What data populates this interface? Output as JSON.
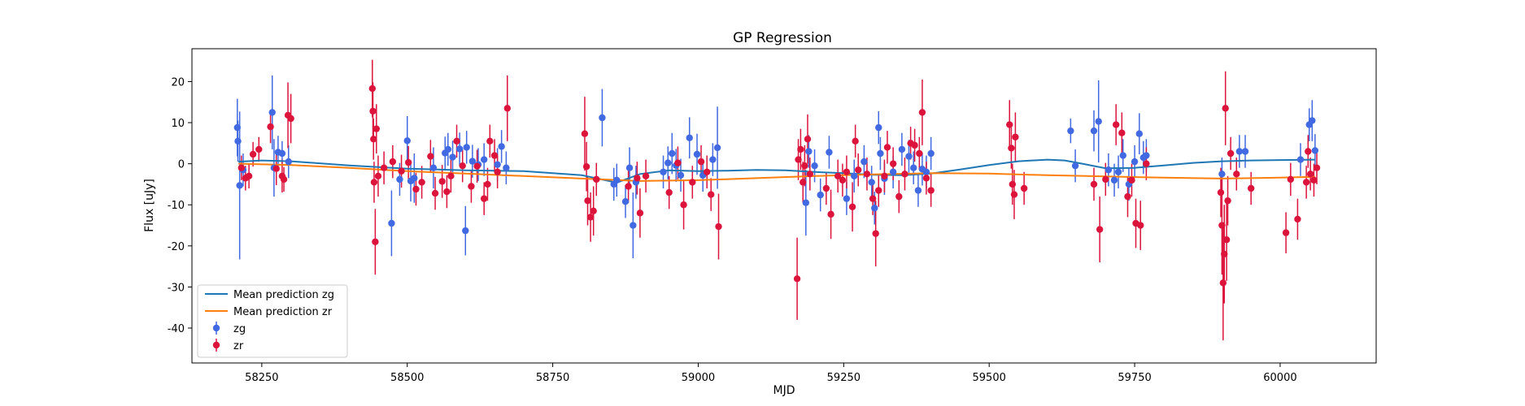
{
  "chart_data": {
    "type": "scatter",
    "title": "GP Regression",
    "xlabel": "MJD",
    "ylabel": "Flux [uJy]",
    "xlim": [
      58130,
      60165
    ],
    "ylim": [
      -48.5,
      28
    ],
    "xticks": [
      58250,
      58500,
      58750,
      59000,
      59250,
      59500,
      59750,
      60000
    ],
    "yticks": [
      20,
      10,
      0,
      -10,
      -20,
      -30,
      -40
    ],
    "grid": false,
    "legend_position": "lower-left",
    "legend": [
      {
        "label": "Mean prediction zg",
        "kind": "line",
        "color": "#1f77b4"
      },
      {
        "label": "Mean prediction zr",
        "kind": "line",
        "color": "#ff7f0e"
      },
      {
        "label": "zg",
        "kind": "errorbar",
        "color": "#4169e1"
      },
      {
        "label": "zr",
        "kind": "errorbar",
        "color": "#dc143c"
      }
    ],
    "mean_predictions": [
      {
        "name": "Mean prediction zg",
        "color": "#1f77b4",
        "x": [
          58210,
          58250,
          58300,
          58400,
          58500,
          58600,
          58700,
          58800,
          58860,
          58900,
          58950,
          59000,
          59050,
          59100,
          59150,
          59200,
          59250,
          59300,
          59350,
          59400,
          59450,
          59500,
          59550,
          59600,
          59630,
          59660,
          59700,
          59750,
          59800,
          59850,
          59900,
          59950,
          60000,
          60060
        ],
        "y": [
          0.5,
          0.8,
          0.6,
          -0.4,
          -1.2,
          -1.6,
          -1.8,
          -2.8,
          -4.6,
          -2.5,
          -1.6,
          -1.8,
          -1.7,
          -1.5,
          -1.6,
          -2.0,
          -2.3,
          -2.7,
          -2.8,
          -2.4,
          -1.4,
          -0.3,
          0.6,
          1.0,
          0.8,
          0.0,
          -1.1,
          -1.0,
          -0.4,
          0.2,
          0.6,
          0.8,
          0.9,
          1.0
        ]
      },
      {
        "name": "Mean prediction zr",
        "color": "#ff7f0e",
        "x": [
          58210,
          58300,
          58400,
          58500,
          58600,
          58700,
          58800,
          58900,
          59000,
          59100,
          59200,
          59300,
          59400,
          59500,
          59600,
          59700,
          59800,
          59900,
          60000,
          60060
        ],
        "y": [
          0.0,
          -0.3,
          -1.0,
          -1.8,
          -2.4,
          -3.0,
          -3.6,
          -4.2,
          -4.0,
          -3.5,
          -3.0,
          -2.6,
          -2.3,
          -2.4,
          -2.8,
          -3.1,
          -3.4,
          -3.6,
          -3.4,
          -3.2
        ]
      }
    ],
    "series": [
      {
        "name": "zg",
        "color": "#4169e1",
        "points": [
          [
            58208,
            8.8,
            7
          ],
          [
            58209,
            5.5,
            5
          ],
          [
            58212,
            -5.3,
            18
          ],
          [
            58218,
            -1.5,
            4
          ],
          [
            58268,
            12.5,
            9
          ],
          [
            58271,
            -1.0,
            7
          ],
          [
            58278,
            2.8,
            4
          ],
          [
            58285,
            2.5,
            3
          ],
          [
            58296,
            0.5,
            4
          ],
          [
            58473,
            -14.5,
            8
          ],
          [
            58487,
            -3.8,
            4
          ],
          [
            58500,
            5.6,
            6
          ],
          [
            58506,
            -4.2,
            5
          ],
          [
            58512,
            -3.5,
            6
          ],
          [
            58545,
            -1.0,
            5
          ],
          [
            58565,
            2.6,
            4
          ],
          [
            58570,
            3.5,
            4
          ],
          [
            58578,
            1.6,
            4
          ],
          [
            58590,
            3.6,
            4
          ],
          [
            58600,
            -16.3,
            6
          ],
          [
            58602,
            4.0,
            4
          ],
          [
            58612,
            0.6,
            4
          ],
          [
            58622,
            -0.2,
            4
          ],
          [
            58632,
            1.0,
            4
          ],
          [
            58655,
            -0.2,
            4
          ],
          [
            58662,
            4.2,
            4
          ],
          [
            58670,
            -1.0,
            4
          ],
          [
            58835,
            11.2,
            7
          ],
          [
            58855,
            -5.0,
            4
          ],
          [
            58860,
            -4.0,
            4
          ],
          [
            58875,
            -9.2,
            4
          ],
          [
            58882,
            -1.0,
            5
          ],
          [
            58888,
            -15.0,
            8
          ],
          [
            58893,
            -4.5,
            4
          ],
          [
            58940,
            -2.0,
            4
          ],
          [
            58948,
            0.2,
            4
          ],
          [
            58955,
            2.5,
            5
          ],
          [
            58962,
            -0.4,
            4
          ],
          [
            58970,
            -2.8,
            4
          ],
          [
            58985,
            6.3,
            5
          ],
          [
            58998,
            2.3,
            5
          ],
          [
            59008,
            -2.8,
            4
          ],
          [
            59025,
            1.0,
            4
          ],
          [
            59033,
            3.9,
            10
          ],
          [
            59185,
            -9.5,
            8
          ],
          [
            59190,
            3.0,
            4
          ],
          [
            59200,
            -0.5,
            4
          ],
          [
            59210,
            -7.6,
            4
          ],
          [
            59225,
            2.8,
            4
          ],
          [
            59255,
            -8.5,
            4
          ],
          [
            59268,
            -3.0,
            4
          ],
          [
            59285,
            0.5,
            4
          ],
          [
            59298,
            -4.5,
            4
          ],
          [
            59303,
            -10.8,
            4
          ],
          [
            59310,
            8.8,
            4
          ],
          [
            59313,
            2.5,
            4
          ],
          [
            59320,
            -3.6,
            4
          ],
          [
            59335,
            -2.0,
            4
          ],
          [
            59350,
            3.5,
            4
          ],
          [
            59362,
            1.8,
            4
          ],
          [
            59370,
            -1.0,
            4
          ],
          [
            59378,
            -6.5,
            4
          ],
          [
            59385,
            -1.3,
            4
          ],
          [
            59392,
            -2.0,
            4
          ],
          [
            59400,
            2.5,
            4
          ],
          [
            59640,
            8.0,
            3
          ],
          [
            59648,
            -0.5,
            4
          ],
          [
            59680,
            8.0,
            5
          ],
          [
            59688,
            10.3,
            10
          ],
          [
            59705,
            -1.5,
            4
          ],
          [
            59715,
            -4.0,
            4
          ],
          [
            59722,
            -2.0,
            4
          ],
          [
            59730,
            2.0,
            4
          ],
          [
            59740,
            -5.0,
            4
          ],
          [
            59750,
            0.5,
            4
          ],
          [
            59758,
            7.3,
            5
          ],
          [
            59765,
            1.5,
            4
          ],
          [
            59770,
            2.0,
            4
          ],
          [
            59900,
            -2.5,
            4
          ],
          [
            59930,
            3.0,
            4
          ],
          [
            59940,
            3.0,
            4
          ],
          [
            60035,
            1.0,
            4
          ],
          [
            60050,
            9.5,
            4
          ],
          [
            60055,
            10.5,
            5
          ],
          [
            60060,
            3.2,
            4
          ]
        ]
      },
      {
        "name": "zr",
        "color": "#dc143c",
        "points": [
          [
            58215,
            -1.0,
            3
          ],
          [
            58222,
            -3.5,
            3
          ],
          [
            58228,
            -3.0,
            3
          ],
          [
            58235,
            2.3,
            3
          ],
          [
            58245,
            3.5,
            3
          ],
          [
            58265,
            9.0,
            4
          ],
          [
            58275,
            -1.2,
            4
          ],
          [
            58285,
            -3.0,
            4
          ],
          [
            58288,
            -3.8,
            3
          ],
          [
            58295,
            11.8,
            8
          ],
          [
            58300,
            11.0,
            6
          ],
          [
            58440,
            18.3,
            7
          ],
          [
            58441,
            12.8,
            7
          ],
          [
            58442,
            6.0,
            5
          ],
          [
            58443,
            -4.5,
            5
          ],
          [
            58445,
            -19.0,
            8
          ],
          [
            58447,
            8.5,
            6
          ],
          [
            58450,
            -3.0,
            5
          ],
          [
            58460,
            -1.0,
            4
          ],
          [
            58475,
            0.5,
            4
          ],
          [
            58490,
            -1.8,
            4
          ],
          [
            58502,
            0.3,
            4
          ],
          [
            58515,
            -6.2,
            4
          ],
          [
            58525,
            -4.5,
            4
          ],
          [
            58540,
            1.8,
            4
          ],
          [
            58548,
            -7.2,
            4
          ],
          [
            58560,
            -4.3,
            4
          ],
          [
            58568,
            -6.8,
            4
          ],
          [
            58575,
            -3.0,
            4
          ],
          [
            58585,
            5.5,
            4
          ],
          [
            58595,
            -0.5,
            4
          ],
          [
            58610,
            -5.5,
            4
          ],
          [
            58620,
            -0.6,
            4
          ],
          [
            58632,
            -8.5,
            4
          ],
          [
            58638,
            -5.0,
            4
          ],
          [
            58642,
            5.5,
            4
          ],
          [
            58650,
            2.0,
            4
          ],
          [
            58655,
            -2.0,
            4
          ],
          [
            58672,
            13.5,
            8
          ],
          [
            58805,
            7.3,
            9
          ],
          [
            58808,
            -0.7,
            6
          ],
          [
            58810,
            -9.0,
            6
          ],
          [
            58815,
            -13.0,
            6
          ],
          [
            58820,
            -11.5,
            6
          ],
          [
            58825,
            -3.8,
            4
          ],
          [
            58880,
            -5.5,
            4
          ],
          [
            58895,
            -3.5,
            4
          ],
          [
            58900,
            -12.0,
            6
          ],
          [
            58910,
            -3.0,
            4
          ],
          [
            58950,
            -7.0,
            4
          ],
          [
            58965,
            0.2,
            4
          ],
          [
            58975,
            -10.0,
            6
          ],
          [
            58990,
            -4.5,
            4
          ],
          [
            59005,
            0.5,
            4
          ],
          [
            59015,
            -2.0,
            4
          ],
          [
            59022,
            -7.5,
            4
          ],
          [
            59035,
            -15.3,
            8
          ],
          [
            59170,
            -28.0,
            10
          ],
          [
            59172,
            1.0,
            5
          ],
          [
            59176,
            3.5,
            5
          ],
          [
            59180,
            -4.5,
            5
          ],
          [
            59183,
            -0.5,
            5
          ],
          [
            59188,
            6.0,
            6
          ],
          [
            59192,
            -2.5,
            4
          ],
          [
            59220,
            -6.0,
            4
          ],
          [
            59228,
            -12.3,
            6
          ],
          [
            59240,
            -3.0,
            4
          ],
          [
            59248,
            -4.0,
            4
          ],
          [
            59255,
            -2.0,
            4
          ],
          [
            59265,
            -10.5,
            6
          ],
          [
            59270,
            5.5,
            4
          ],
          [
            59275,
            -1.5,
            4
          ],
          [
            59290,
            -2.5,
            4
          ],
          [
            59300,
            -8.5,
            4
          ],
          [
            59305,
            -17.0,
            8
          ],
          [
            59310,
            -6.5,
            4
          ],
          [
            59320,
            -3.0,
            4
          ],
          [
            59325,
            4.0,
            4
          ],
          [
            59335,
            0.0,
            4
          ],
          [
            59345,
            -8.0,
            4
          ],
          [
            59355,
            -2.5,
            4
          ],
          [
            59365,
            5.0,
            4
          ],
          [
            59372,
            4.5,
            4
          ],
          [
            59380,
            2.5,
            4
          ],
          [
            59385,
            12.5,
            8
          ],
          [
            59392,
            -3.5,
            4
          ],
          [
            59400,
            -6.5,
            4
          ],
          [
            59535,
            9.5,
            6
          ],
          [
            59538,
            3.8,
            5
          ],
          [
            59540,
            -5.0,
            5
          ],
          [
            59543,
            -7.5,
            6
          ],
          [
            59545,
            6.5,
            6
          ],
          [
            59560,
            -6.0,
            4
          ],
          [
            59680,
            -5.0,
            4
          ],
          [
            59690,
            -16.0,
            8
          ],
          [
            59700,
            -3.8,
            4
          ],
          [
            59718,
            9.5,
            5
          ],
          [
            59728,
            7.5,
            5
          ],
          [
            59738,
            -8.0,
            5
          ],
          [
            59745,
            -4.0,
            4
          ],
          [
            59752,
            -14.5,
            6
          ],
          [
            59760,
            -15.0,
            6
          ],
          [
            59770,
            0.0,
            4
          ],
          [
            59898,
            -7.0,
            6
          ],
          [
            59900,
            -15.0,
            12
          ],
          [
            59902,
            -29.0,
            14
          ],
          [
            59904,
            -22.0,
            12
          ],
          [
            59906,
            13.5,
            9
          ],
          [
            59908,
            -18.5,
            10
          ],
          [
            59910,
            -9.0,
            6
          ],
          [
            59915,
            2.5,
            4
          ],
          [
            59925,
            -2.5,
            4
          ],
          [
            59950,
            -6.0,
            4
          ],
          [
            60010,
            -16.8,
            5
          ],
          [
            60018,
            -3.8,
            4
          ],
          [
            60030,
            -13.5,
            5
          ],
          [
            60045,
            -4.5,
            4
          ],
          [
            60048,
            3.0,
            4
          ],
          [
            60052,
            -2.5,
            4
          ],
          [
            60058,
            -4.0,
            4
          ],
          [
            60063,
            -1.0,
            4
          ]
        ]
      }
    ]
  }
}
